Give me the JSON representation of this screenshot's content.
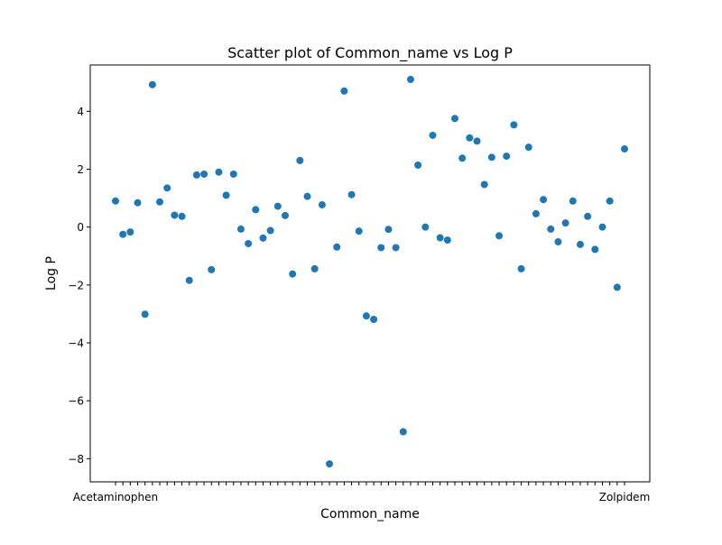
{
  "chart_data": {
    "type": "scatter",
    "title": "Scatter plot of Common_name vs Log P",
    "xlabel": "Common_name",
    "ylabel": "Log P",
    "marker_color": "#1f77b4",
    "grid": false,
    "legend": "none",
    "ylim": [
      -8.8,
      5.6
    ],
    "y_ticks": [
      -8,
      -6,
      -4,
      -2,
      0,
      2,
      4
    ],
    "y_tick_labels": [
      "−8",
      "−6",
      "−4",
      "−2",
      "0",
      "2",
      "4"
    ],
    "x_first_label": "Acetaminophen",
    "x_last_label": "Zolpidem",
    "y_values": [
      0.9,
      -0.25,
      -0.17,
      0.84,
      -3.01,
      4.92,
      0.87,
      1.35,
      0.41,
      0.37,
      -1.84,
      1.8,
      1.83,
      -1.47,
      1.9,
      1.1,
      1.83,
      -0.07,
      -0.57,
      0.6,
      -0.38,
      -0.12,
      0.72,
      0.4,
      -1.62,
      2.3,
      1.06,
      -1.44,
      0.77,
      -8.18,
      -0.69,
      4.7,
      1.12,
      -0.14,
      -3.07,
      -3.19,
      -0.71,
      -0.08,
      -0.71,
      -7.07,
      5.1,
      2.14,
      0.0,
      3.17,
      -0.37,
      -0.45,
      3.75,
      2.38,
      3.08,
      2.97,
      1.47,
      2.41,
      -0.3,
      2.45,
      3.53,
      -1.44,
      2.76,
      0.46,
      0.95,
      -0.07,
      -0.51,
      0.14,
      0.9,
      -0.6,
      0.37,
      -0.77,
      0.0,
      0.9,
      -2.08,
      2.7
    ]
  }
}
